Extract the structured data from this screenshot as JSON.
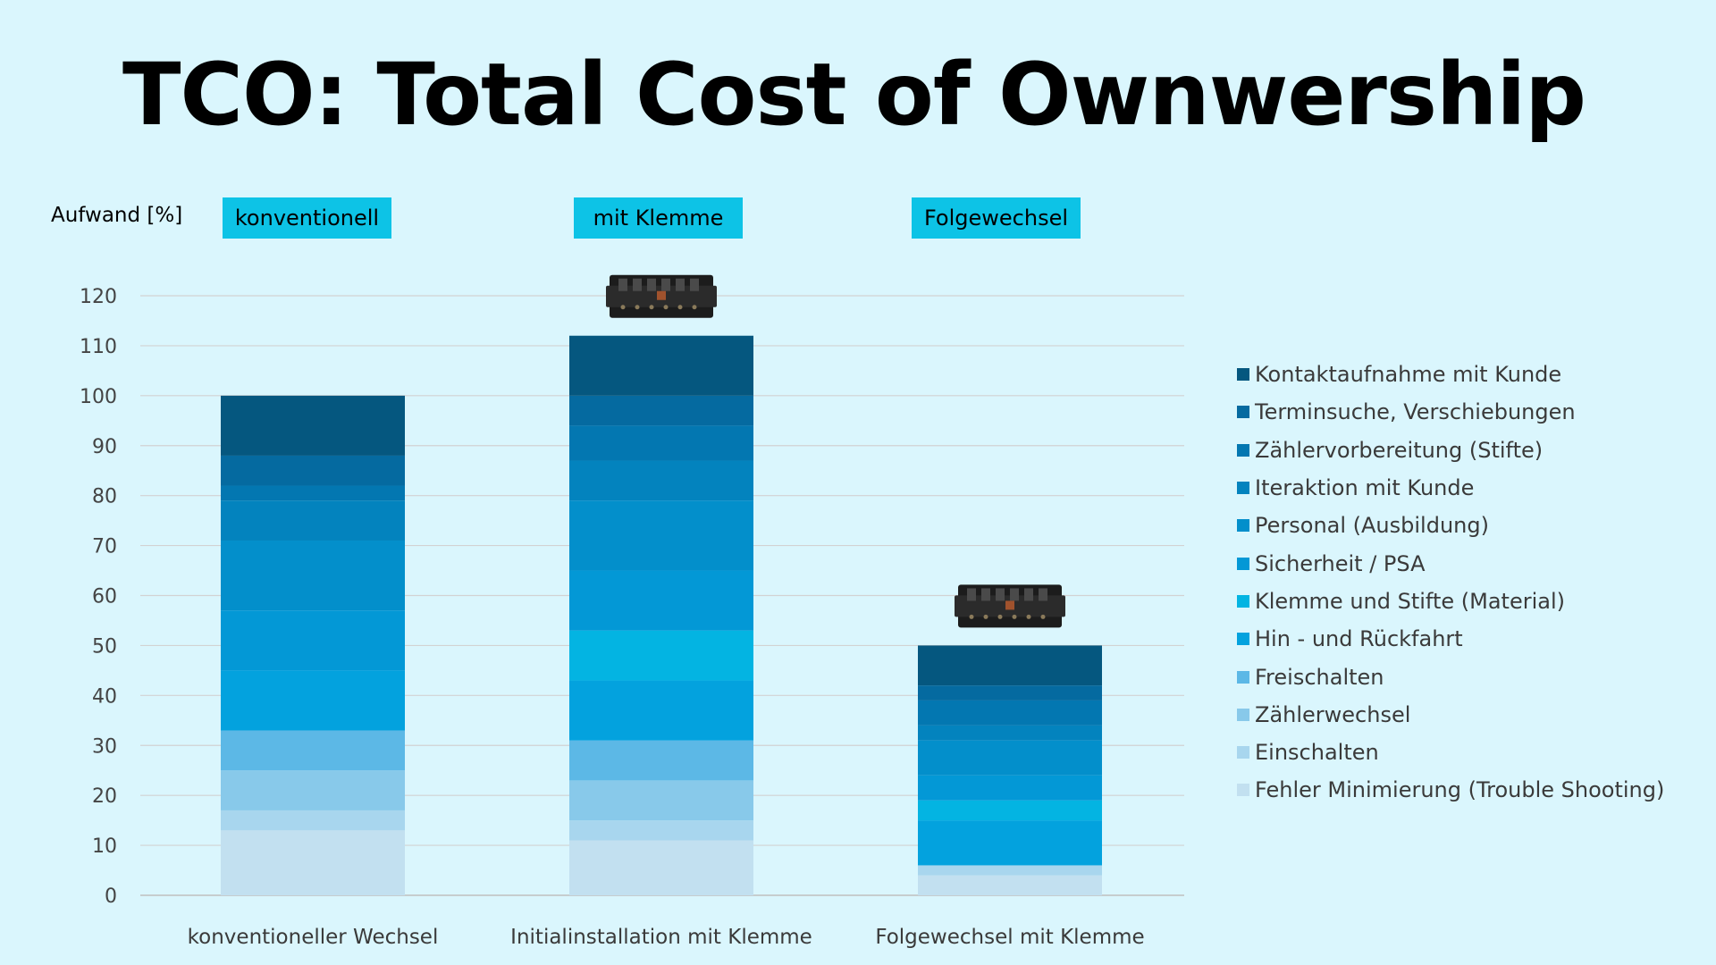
{
  "slide": {
    "title": "TCO: Total Cost of Ownwership",
    "y_axis_label": "Aufwand [%]",
    "tags": [
      "konventionell",
      "mit Klemme",
      "Folgewechsel"
    ]
  },
  "chart_data": {
    "type": "bar",
    "stacked": true,
    "title": "TCO: Total Cost of Ownwership",
    "ylabel": "Aufwand [%]",
    "xlabel": "",
    "ylim": [
      0,
      120
    ],
    "yticks": [
      0,
      10,
      20,
      30,
      40,
      50,
      60,
      70,
      80,
      90,
      100,
      110,
      120
    ],
    "grid": true,
    "legend_position": "right",
    "categories": [
      "konventioneller Wechsel",
      "Initialinstallation mit Klemme",
      "Folgewechsel mit Klemme"
    ],
    "series": [
      {
        "name": "Fehler Minimierung (Trouble Shooting)",
        "color": "#c2e0f0",
        "values": [
          13,
          11,
          4
        ]
      },
      {
        "name": "Einschalten",
        "color": "#a8d6ee",
        "values": [
          4,
          4,
          2
        ]
      },
      {
        "name": "Zählerwechsel",
        "color": "#88c9ea",
        "values": [
          8,
          8,
          0
        ]
      },
      {
        "name": "Freischalten",
        "color": "#5cb8e6",
        "values": [
          8,
          8,
          0
        ]
      },
      {
        "name": "Hin - und Rückfahrt",
        "color": "#03a2de",
        "values": [
          12,
          12,
          9
        ]
      },
      {
        "name": "Klemme und Stifte (Material)",
        "color": "#03b4e2",
        "values": [
          0,
          10,
          4
        ]
      },
      {
        "name": "Sicherheit / PSA",
        "color": "#0398d6",
        "values": [
          12,
          12,
          5
        ]
      },
      {
        "name": "Personal (Ausbildung)",
        "color": "#038fcb",
        "values": [
          14,
          14,
          7
        ]
      },
      {
        "name": "Iteraktion mit Kunde",
        "color": "#0383be",
        "values": [
          8,
          8,
          3
        ]
      },
      {
        "name": "Zählervorbereitung (Stifte)",
        "color": "#0377b1",
        "values": [
          3,
          7,
          5
        ]
      },
      {
        "name": "Terminsuche, Verschiebungen",
        "color": "#056aa0",
        "values": [
          6,
          6,
          3
        ]
      },
      {
        "name": "Kontaktaufnahme mit Kunde",
        "color": "#05577f",
        "values": [
          12,
          12,
          8
        ]
      }
    ],
    "legend_order": [
      "Kontaktaufnahme mit Kunde",
      "Terminsuche, Verschiebungen",
      "Zählervorbereitung (Stifte)",
      "Iteraktion mit Kunde",
      "Personal (Ausbildung)",
      "Sicherheit / PSA",
      "Klemme und Stifte (Material)",
      "Hin - und Rückfahrt",
      "Freischalten",
      "Zählerwechsel",
      "Einschalten",
      "Fehler Minimierung (Trouble Shooting)"
    ],
    "device_images_on": [
      "Initialinstallation mit Klemme",
      "Folgewechsel mit Klemme"
    ]
  }
}
